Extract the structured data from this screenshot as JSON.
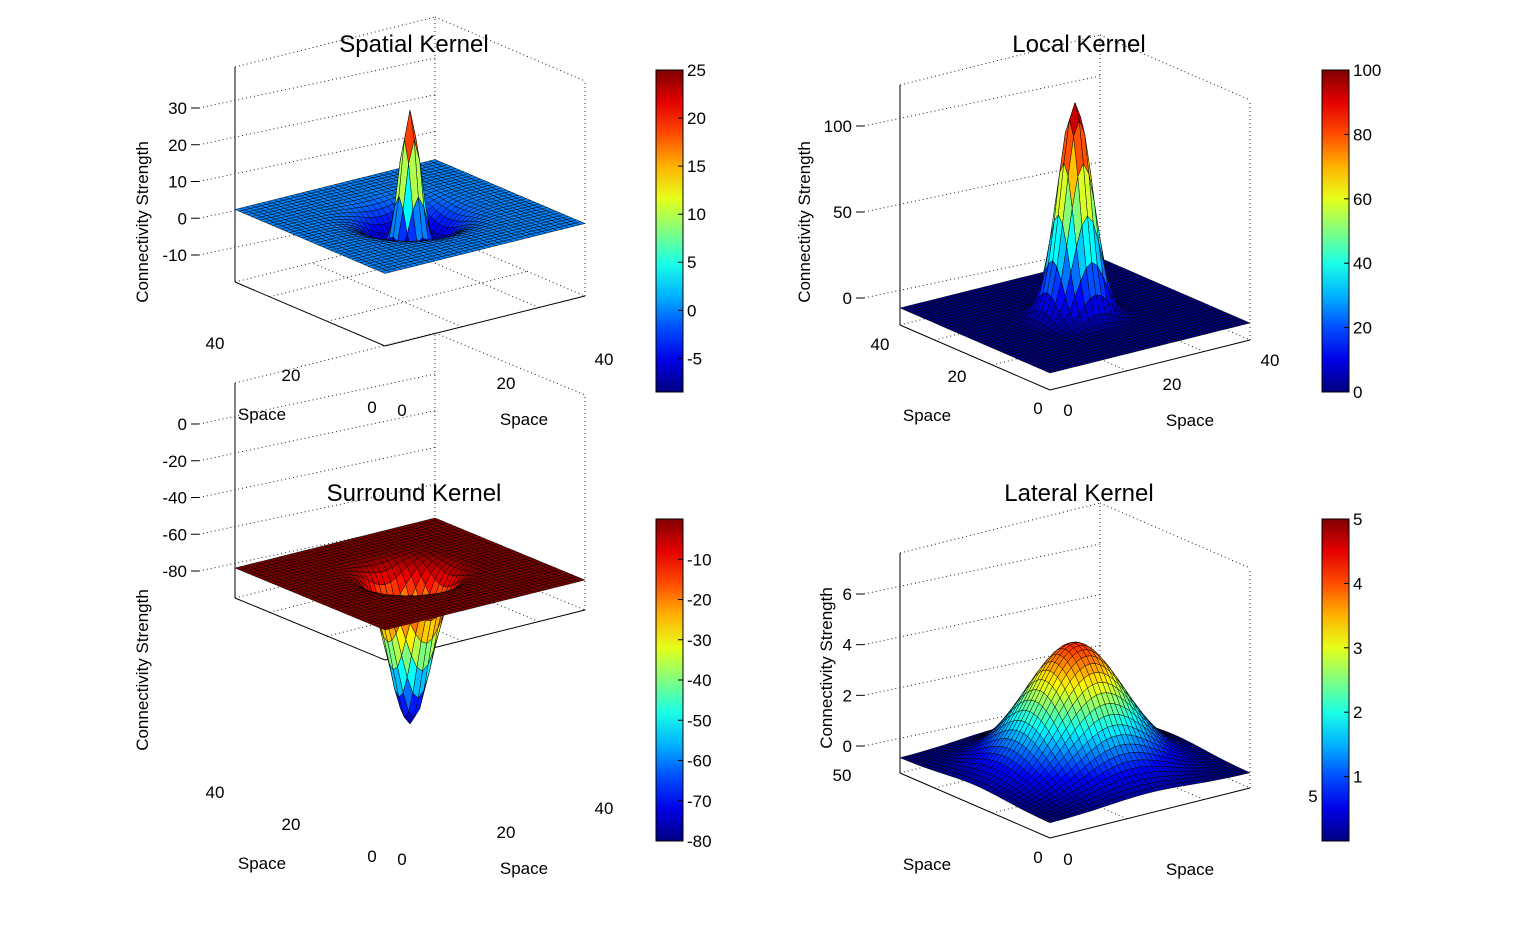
{
  "figure": {
    "background": "#ffffff",
    "colormap": "jet"
  },
  "chart_data": [
    {
      "type": "surface",
      "title": "Spatial Kernel",
      "xlabel": "Space",
      "ylabel": "Space",
      "zlabel": "Connectivity Strength",
      "x_range": [
        0,
        50
      ],
      "y_range": [
        0,
        50
      ],
      "zlim": [
        -10,
        30
      ],
      "x_ticks": [
        "0",
        "20",
        "40"
      ],
      "y_ticks": [
        "0",
        "20",
        "40"
      ],
      "z_ticks": [
        "-10",
        "0",
        "10",
        "20",
        "30"
      ],
      "colorbar": {
        "range": [
          -8.5,
          25
        ],
        "ticks": [
          "-5",
          "0",
          "5",
          "10",
          "15",
          "20",
          "25"
        ]
      },
      "grid": true,
      "surface": {
        "kind": "difference_of_gaussians",
        "center": [
          25,
          25
        ],
        "peak": 25,
        "trough": -8.5,
        "sigma_center": 2.2,
        "sigma_surround": 5.5,
        "samples": 36
      }
    },
    {
      "type": "surface",
      "title": "Local Kernel",
      "xlabel": "Space",
      "ylabel": "Space",
      "zlabel": "Connectivity Strength",
      "x_range": [
        0,
        50
      ],
      "y_range": [
        0,
        50
      ],
      "zlim": [
        0,
        100
      ],
      "x_ticks": [
        "0",
        "20",
        "40"
      ],
      "y_ticks": [
        "0",
        "20",
        "40"
      ],
      "z_ticks": [
        "0",
        "50",
        "100"
      ],
      "colorbar": {
        "range": [
          0,
          100
        ],
        "ticks": [
          "0",
          "20",
          "40",
          "60",
          "80",
          "100"
        ]
      },
      "grid": true,
      "surface": {
        "kind": "gaussian",
        "center": [
          25,
          25
        ],
        "peak": 100,
        "sigma": 3.5,
        "samples": 36
      }
    },
    {
      "type": "surface",
      "title": "Surround Kernel",
      "xlabel": "Space",
      "ylabel": "Space",
      "zlabel": "Connectivity Strength",
      "x_range": [
        0,
        50
      ],
      "y_range": [
        0,
        50
      ],
      "zlim": [
        -80,
        0
      ],
      "x_ticks": [
        "0",
        "20",
        "40"
      ],
      "y_ticks": [
        "0",
        "20",
        "40"
      ],
      "z_ticks": [
        "-80",
        "-60",
        "-40",
        "-20",
        "0"
      ],
      "colorbar": {
        "range": [
          -80,
          0
        ],
        "ticks": [
          "-80",
          "-70",
          "-60",
          "-50",
          "-40",
          "-30",
          "-20",
          "-10"
        ]
      },
      "grid": true,
      "surface": {
        "kind": "negative_gaussian",
        "center": [
          25,
          25
        ],
        "depth": -80,
        "sigma": 4.2,
        "samples": 36
      }
    },
    {
      "type": "surface",
      "title": "Lateral Kernel",
      "xlabel": "Space",
      "ylabel": "Space",
      "zlabel": "Connectivity Strength",
      "x_range": [
        0,
        50
      ],
      "y_range": [
        0,
        50
      ],
      "zlim": [
        0,
        6
      ],
      "x_ticks": [
        "0",
        "5"
      ],
      "y_ticks": [
        "0",
        "50"
      ],
      "z_ticks": [
        "0",
        "2",
        "4",
        "6"
      ],
      "colorbar": {
        "range": [
          0,
          5
        ],
        "ticks": [
          "1",
          "2",
          "3",
          "4",
          "5"
        ]
      },
      "grid": true,
      "surface": {
        "kind": "gaussian",
        "center": [
          25,
          25
        ],
        "peak": 4.2,
        "sigma": 10,
        "samples": 40
      }
    }
  ]
}
